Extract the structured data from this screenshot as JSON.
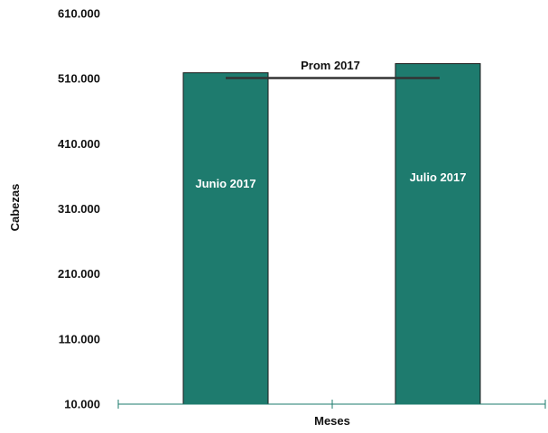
{
  "chart_data": {
    "type": "bar",
    "title": "",
    "xlabel": "Meses",
    "ylabel": "Cabezas",
    "ylim": [
      10000,
      610000
    ],
    "yticks": [
      "10.000",
      "110.000",
      "210.000",
      "310.000",
      "410.000",
      "510.000",
      "610.000"
    ],
    "categories": [
      "Junio 2017",
      "Julio 2017"
    ],
    "values": [
      519000,
      533000
    ],
    "reference_line": {
      "name": "Prom 2017",
      "value": 511000
    },
    "grid": false,
    "legend": "none",
    "colors": {
      "bar": "#1e7b6e",
      "bar_outline": "#1a1a1a",
      "axis": "#1e7b6e",
      "avg_line": "#333333"
    }
  }
}
